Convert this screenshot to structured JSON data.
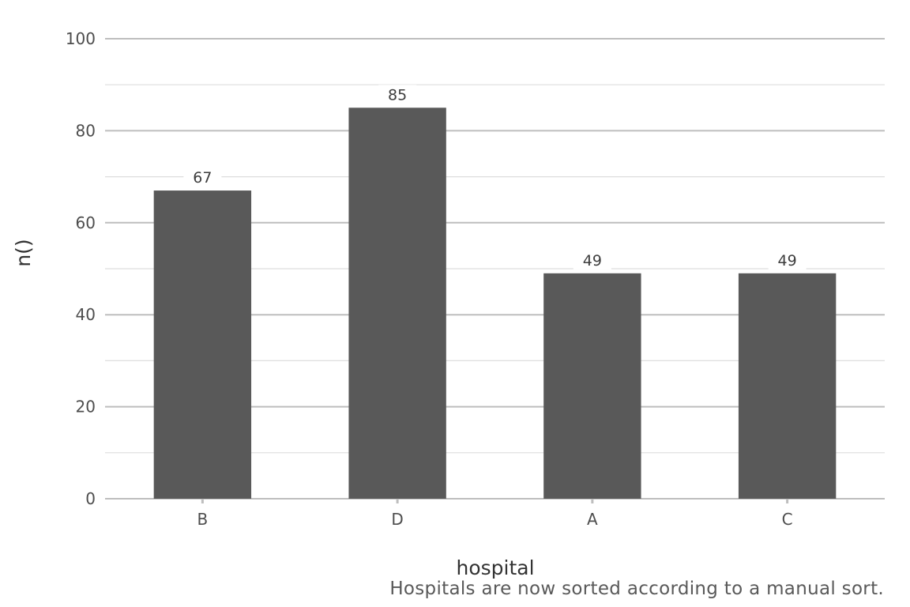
{
  "chart_data": {
    "type": "bar",
    "categories": [
      "B",
      "D",
      "A",
      "C"
    ],
    "values": [
      67,
      85,
      49,
      49
    ],
    "data_labels": [
      "67",
      "85",
      "49",
      "49"
    ],
    "xlabel": "hospital",
    "ylabel": "n()",
    "caption": "Hospitals are now sorted according to a manual sort.",
    "ylim": [
      0,
      100
    ],
    "y_major_ticks": [
      0,
      20,
      40,
      60,
      80,
      100
    ],
    "y_minor_ticks": [
      10,
      30,
      50,
      70,
      90
    ],
    "grid": true,
    "legend": "none",
    "bar_color": "#595959",
    "grid_major_color": "#bebebe",
    "grid_minor_color": "#dedede"
  }
}
